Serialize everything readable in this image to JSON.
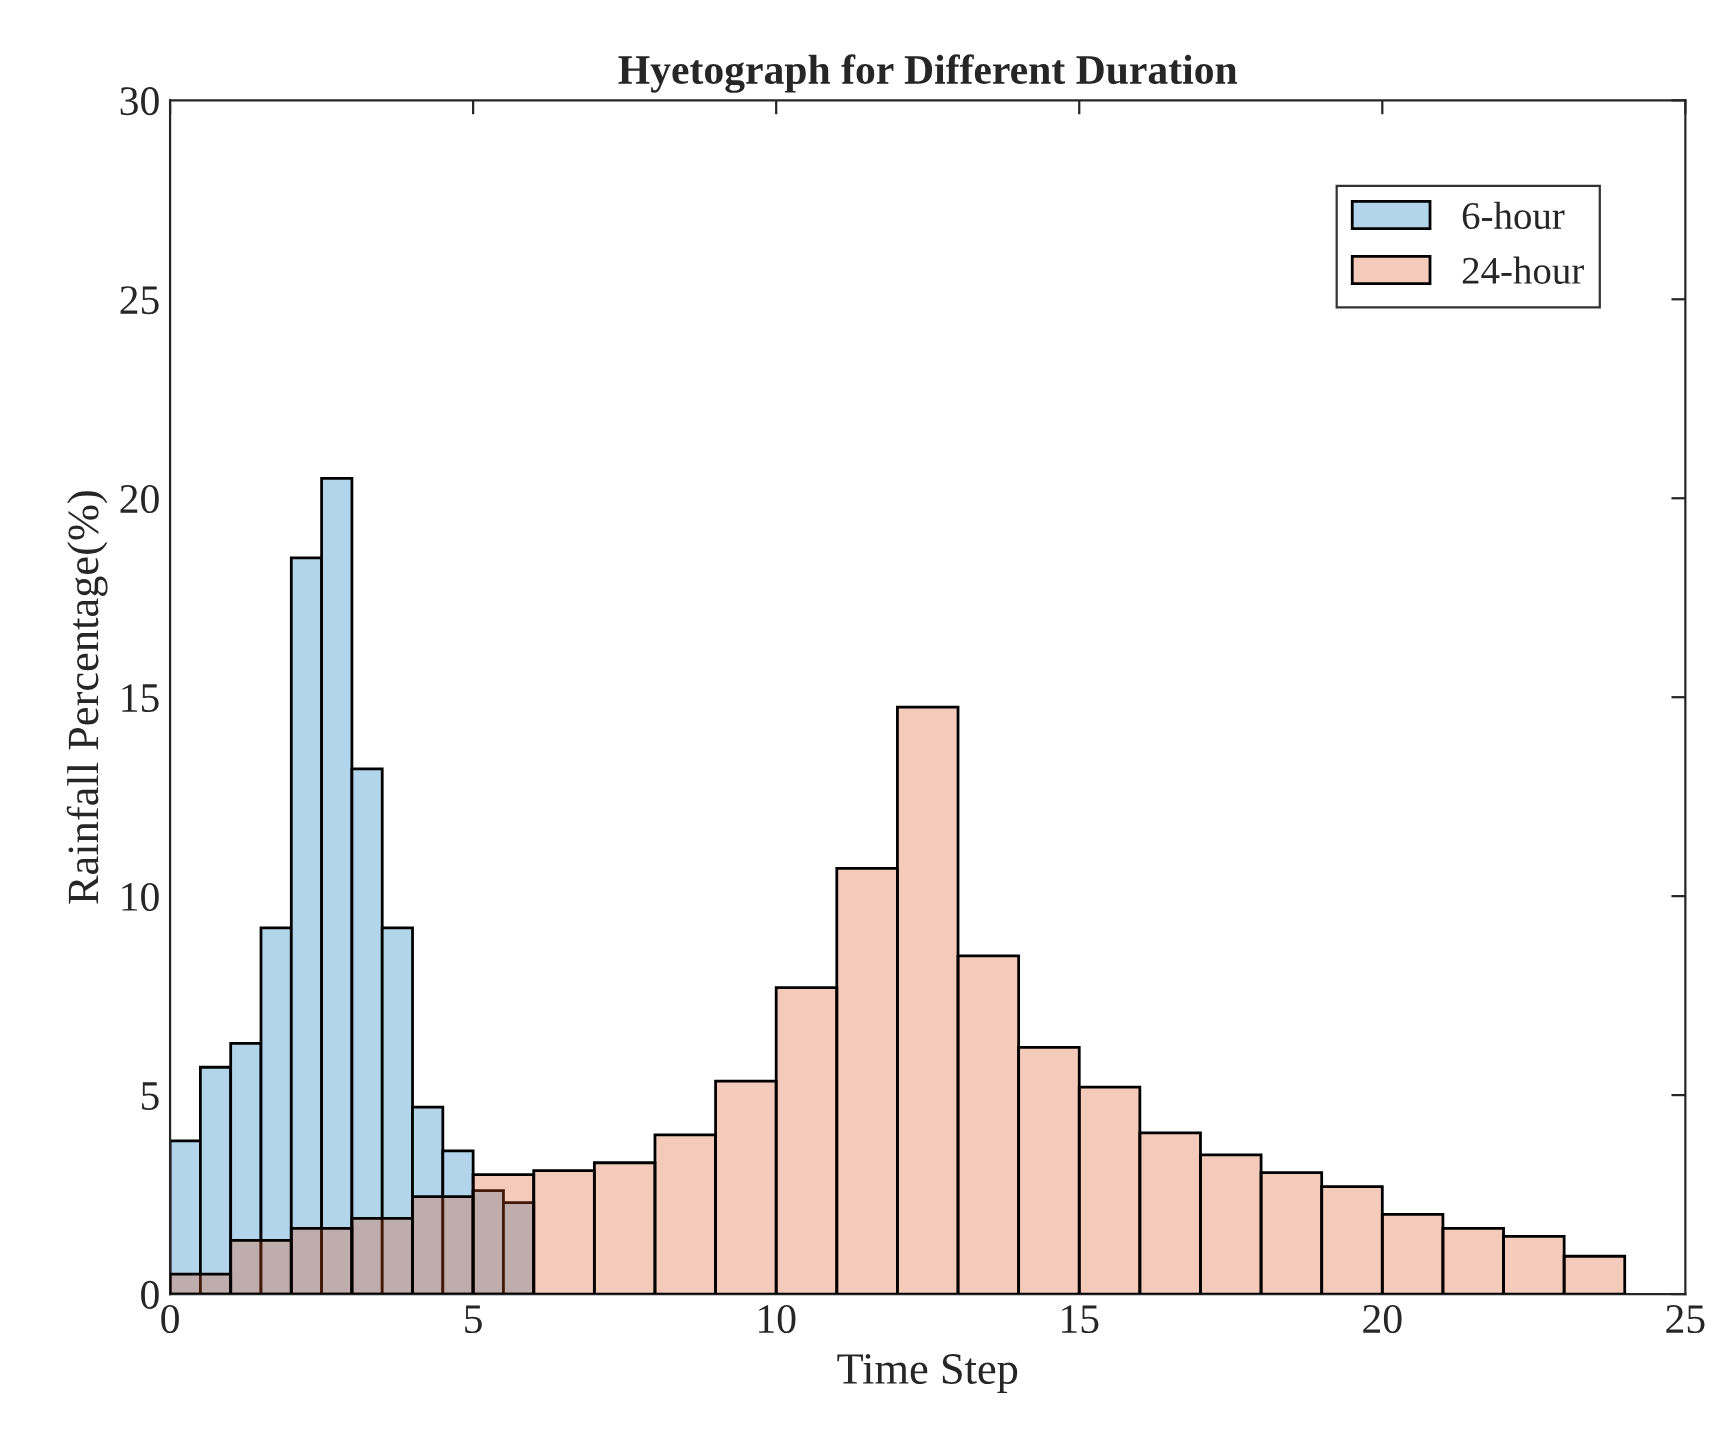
{
  "chart_data": {
    "type": "bar",
    "title": "Hyetograph for Different Duration",
    "xlabel": "Time Step",
    "ylabel": "Rainfall Percentage(%)",
    "series": [
      {
        "name": "6-hour",
        "color": "#b2d5eb",
        "x": [
          0.25,
          0.75,
          1.25,
          1.75,
          2.25,
          2.75,
          3.25,
          3.75,
          4.25,
          4.75,
          5.25,
          5.75
        ],
        "values": [
          3.85,
          5.7,
          6.3,
          9.2,
          18.5,
          20.5,
          13.2,
          9.2,
          4.7,
          3.6,
          2.6,
          2.3
        ]
      },
      {
        "name": "24-hour",
        "color": "#f4cbba",
        "x": [
          0.5,
          1.5,
          2.5,
          3.5,
          4.5,
          5.5,
          6.5,
          7.5,
          8.5,
          9.5,
          10.5,
          11.5,
          12.5,
          13.5,
          14.5,
          15.5,
          16.5,
          17.5,
          18.5,
          19.5,
          20.5,
          21.5,
          22.5,
          23.5
        ],
        "values": [
          0.5,
          1.35,
          1.65,
          1.9,
          2.45,
          3.0,
          3.1,
          3.3,
          4.0,
          5.35,
          7.7,
          10.7,
          14.75,
          8.5,
          6.2,
          5.2,
          4.05,
          3.5,
          3.05,
          2.7,
          2.0,
          1.65,
          1.45,
          0.95
        ]
      }
    ],
    "xlim": [
      0,
      25
    ],
    "xticks": [
      0,
      5,
      10,
      15,
      20,
      25
    ],
    "ylim": [
      0,
      30
    ],
    "yticks": [
      0,
      5,
      10,
      15,
      20,
      25,
      30
    ],
    "grid": false,
    "legend": "top right"
  }
}
